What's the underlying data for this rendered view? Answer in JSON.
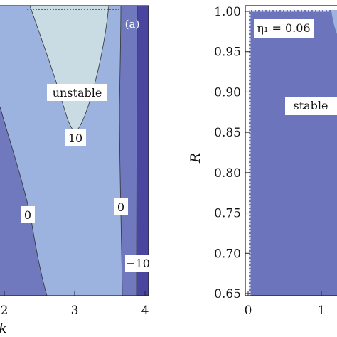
{
  "chart_data": [
    {
      "type": "contour",
      "panel_tag": "(a)",
      "xlabel": "k",
      "ylabel": "",
      "xlim": [
        1.9,
        4.1
      ],
      "x_ticks": [
        "2",
        "3",
        "4"
      ],
      "x_tick_values": [
        2,
        3,
        4
      ],
      "region_colors": {
        "darkest": "#4a46a0",
        "dark": "#7079bd",
        "mid": "#9bb3de",
        "light": "#c9dbe3"
      },
      "regions": [
        {
          "name": "unstable",
          "level": "light"
        },
        {
          "name": "level-0",
          "level": "mid"
        },
        {
          "name": "level-neg",
          "level": "dark"
        },
        {
          "name": "level-neg-10",
          "level": "darkest"
        }
      ],
      "contour_labels": [
        {
          "text": "unstable",
          "x": 3.0
        },
        {
          "text": "10",
          "x": 3.02
        },
        {
          "text": "0",
          "x": 2.33
        },
        {
          "text": "0",
          "x": 3.58
        },
        {
          "text": "−10",
          "x": 3.92
        }
      ]
    },
    {
      "type": "contour",
      "xlabel": "",
      "ylabel": "R",
      "ylim": [
        0.65,
        1.0
      ],
      "y_ticks": [
        "0.65",
        "0.70",
        "0.75",
        "0.80",
        "0.85",
        "0.90",
        "0.95",
        "1.00"
      ],
      "y_tick_values": [
        0.65,
        0.7,
        0.75,
        0.8,
        0.85,
        0.9,
        0.95,
        1.0
      ],
      "x_ticks": [
        "0",
        "1"
      ],
      "x_tick_values": [
        0,
        1
      ],
      "annotation": "η₁ = 0.06",
      "region_label": "stable",
      "region_color": "#6c74bb"
    }
  ]
}
